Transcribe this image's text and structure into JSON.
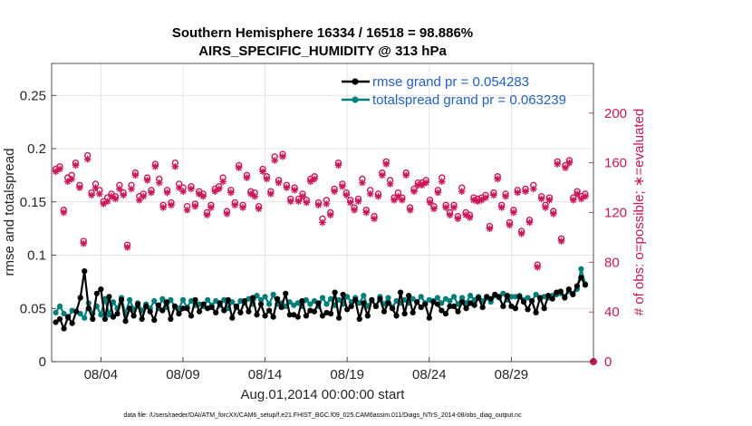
{
  "chart_data": {
    "type": "line",
    "title_line1": "Southern Hemisphere 16334 / 16518 = 98.886%",
    "title_line2": "AIRS_SPECIFIC_HUMIDITY @ 313 hPa",
    "ylabel_left": "rmse and totalspread",
    "ylabel_right": "# of obs: o=possible; ∗=evaluated",
    "xlabel": "Aug.01,2014 00:00:00 start",
    "footer": "data file: /Users/raeder/DAI/ATM_forcXX/CAM6_setup/f.e21.FHIST_BGC.f09_025.CAM6assim.011/Diags_NTrS_2014-08/obs_diag_output.nc",
    "xlim": [
      1,
      34
    ],
    "ylim_left": [
      0,
      0.28
    ],
    "ylim_right": [
      0,
      240
    ],
    "x_ticks": [
      4,
      9,
      14,
      19,
      24,
      29
    ],
    "x_tick_labels": [
      "08/04",
      "08/09",
      "08/14",
      "08/19",
      "08/24",
      "08/29"
    ],
    "y_ticks_left": [
      0,
      0.05,
      0.1,
      0.15,
      0.2,
      0.25
    ],
    "y_tick_labels_left": [
      "0",
      "0.05",
      "0.1",
      "0.15",
      "0.2",
      "0.25"
    ],
    "y_ticks_right": [
      0,
      40,
      80,
      120,
      160,
      200
    ],
    "y_tick_labels_right": [
      "0",
      "40",
      "80",
      "120",
      "160",
      "200"
    ],
    "series": [
      {
        "name": "rmse grand pr = 0.054283",
        "axis": "left",
        "color": "#000000",
        "values": [
          0.037,
          0.04,
          0.031,
          0.042,
          0.036,
          0.047,
          0.06,
          0.085,
          0.05,
          0.04,
          0.064,
          0.068,
          0.04,
          0.061,
          0.042,
          0.045,
          0.058,
          0.038,
          0.05,
          0.043,
          0.054,
          0.04,
          0.052,
          0.047,
          0.039,
          0.053,
          0.048,
          0.056,
          0.04,
          0.052,
          0.045,
          0.05,
          0.05,
          0.043,
          0.058,
          0.047,
          0.054,
          0.05,
          0.051,
          0.046,
          0.055,
          0.048,
          0.058,
          0.041,
          0.052,
          0.046,
          0.057,
          0.047,
          0.06,
          0.044,
          0.054,
          0.043,
          0.048,
          0.042,
          0.059,
          0.051,
          0.064,
          0.044,
          0.044,
          0.042,
          0.057,
          0.043,
          0.048,
          0.047,
          0.055,
          0.043,
          0.046,
          0.045,
          0.065,
          0.041,
          0.063,
          0.049,
          0.052,
          0.058,
          0.04,
          0.055,
          0.043,
          0.058,
          0.052,
          0.059,
          0.047,
          0.055,
          0.05,
          0.043,
          0.065,
          0.045,
          0.062,
          0.046,
          0.056,
          0.051,
          0.054,
          0.041,
          0.056,
          0.054,
          0.048,
          0.045,
          0.052,
          0.052,
          0.047,
          0.056,
          0.05,
          0.055,
          0.053,
          0.06,
          0.051,
          0.061,
          0.059,
          0.063,
          0.061,
          0.052,
          0.062,
          0.052,
          0.05,
          0.061,
          0.056,
          0.049,
          0.057,
          0.046,
          0.06,
          0.05,
          0.062,
          0.059,
          0.065,
          0.066,
          0.06,
          0.068,
          0.063,
          0.071,
          0.079,
          0.072
        ]
      },
      {
        "name": "totalspread grand pr = 0.063239",
        "axis": "left",
        "color": "#00807b",
        "values": [
          0.046,
          0.052,
          0.045,
          0.041,
          0.048,
          0.047,
          0.045,
          0.041,
          0.055,
          0.045,
          0.052,
          0.044,
          0.059,
          0.044,
          0.056,
          0.05,
          0.06,
          0.045,
          0.058,
          0.049,
          0.055,
          0.048,
          0.054,
          0.05,
          0.057,
          0.05,
          0.059,
          0.051,
          0.058,
          0.052,
          0.05,
          0.058,
          0.051,
          0.057,
          0.053,
          0.054,
          0.052,
          0.058,
          0.053,
          0.057,
          0.053,
          0.058,
          0.05,
          0.056,
          0.051,
          0.057,
          0.055,
          0.059,
          0.054,
          0.062,
          0.058,
          0.061,
          0.054,
          0.063,
          0.054,
          0.055,
          0.052,
          0.056,
          0.053,
          0.055,
          0.052,
          0.058,
          0.054,
          0.057,
          0.052,
          0.06,
          0.054,
          0.059,
          0.053,
          0.058,
          0.054,
          0.061,
          0.056,
          0.06,
          0.055,
          0.062,
          0.052,
          0.058,
          0.052,
          0.061,
          0.054,
          0.06,
          0.051,
          0.057,
          0.055,
          0.058,
          0.055,
          0.059,
          0.056,
          0.061,
          0.055,
          0.058,
          0.057,
          0.06,
          0.055,
          0.059,
          0.057,
          0.061,
          0.054,
          0.06,
          0.055,
          0.062,
          0.058,
          0.061,
          0.057,
          0.06,
          0.056,
          0.062,
          0.06,
          0.064,
          0.058,
          0.061,
          0.061,
          0.062,
          0.058,
          0.06,
          0.057,
          0.063,
          0.059,
          0.061,
          0.06,
          0.062,
          0.063,
          0.064,
          0.061,
          0.066,
          0.064,
          0.068,
          0.087,
          0.073
        ]
      },
      {
        "name": "# obs possible",
        "axis": "right",
        "color": "#d0155a",
        "marker": "o",
        "values": [
          155,
          157,
          122,
          148,
          150,
          160,
          142,
          97,
          166,
          136,
          143,
          138,
          129,
          132,
          135,
          133,
          142,
          136,
          94,
          142,
          152,
          133,
          135,
          148,
          138,
          159,
          147,
          126,
          138,
          128,
          160,
          143,
          140,
          125,
          141,
          127,
          137,
          135,
          120,
          126,
          139,
          141,
          148,
          121,
          138,
          128,
          158,
          126,
          150,
          137,
          136,
          125,
          155,
          149,
          137,
          165,
          146,
          167,
          142,
          131,
          140,
          131,
          135,
          130,
          147,
          149,
          128,
          115,
          130,
          120,
          139,
          160,
          143,
          136,
          130,
          124,
          131,
          147,
          122,
          138,
          117,
          135,
          152,
          161,
          146,
          132,
          136,
          132,
          152,
          124,
          139,
          144,
          144,
          146,
          130,
          125,
          138,
          148,
          126,
          120,
          126,
          117,
          140,
          120,
          118,
          132,
          131,
          132,
          134,
          109,
          136,
          149,
          126,
          135,
          112,
          122,
          138,
          105,
          139,
          114,
          142,
          78,
          133,
          126,
          132,
          121,
          161,
          99,
          158,
          162,
          132,
          137,
          133,
          135
        ]
      },
      {
        "name": "# obs evaluated",
        "axis": "right",
        "color": "#d0155a",
        "marker": "*",
        "values": [
          153,
          155,
          120,
          145,
          147,
          158,
          140,
          95,
          163,
          134,
          140,
          135,
          127,
          129,
          133,
          131,
          139,
          134,
          92,
          139,
          150,
          130,
          133,
          146,
          136,
          157,
          144,
          124,
          136,
          126,
          157,
          140,
          137,
          122,
          139,
          125,
          135,
          133,
          118,
          124,
          137,
          139,
          145,
          119,
          136,
          126,
          156,
          124,
          148,
          135,
          133,
          123,
          153,
          147,
          135,
          162,
          144,
          165,
          140,
          129,
          138,
          129,
          133,
          128,
          145,
          147,
          126,
          112,
          127,
          118,
          137,
          158,
          141,
          134,
          128,
          122,
          129,
          144,
          120,
          135,
          115,
          133,
          150,
          159,
          143,
          130,
          133,
          130,
          150,
          122,
          137,
          142,
          142,
          144,
          128,
          123,
          136,
          145,
          124,
          118,
          124,
          115,
          137,
          118,
          116,
          130,
          129,
          130,
          132,
          107,
          134,
          147,
          124,
          133,
          110,
          120,
          136,
          103,
          137,
          112,
          139,
          76,
          131,
          124,
          130,
          119,
          159,
          97,
          156,
          160,
          130,
          135,
          131,
          133
        ]
      }
    ],
    "legend_position": "top-right"
  },
  "colors": {
    "rmse": "#000000",
    "totalspread": "#00807b",
    "obs": "#d0155a",
    "legend_text": "#1f5fd6"
  }
}
